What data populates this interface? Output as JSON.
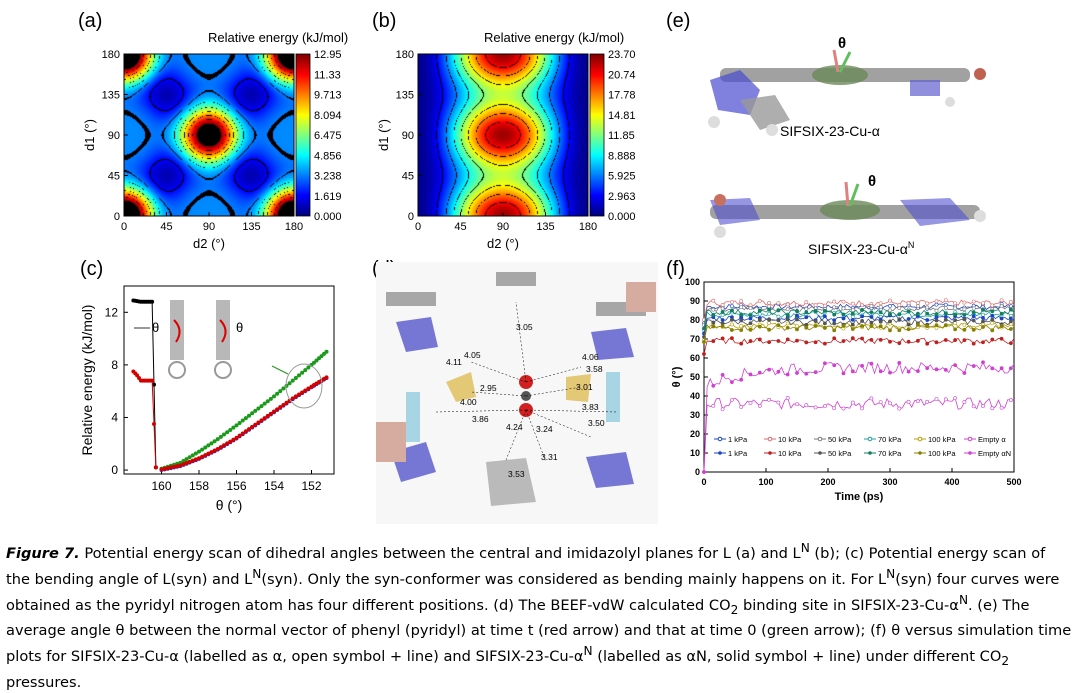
{
  "panels": {
    "a": {
      "label": "(a)",
      "title": "Relative energy (kJ/mol)",
      "xlabel": "d2 (°)",
      "ylabel": "d1 (°)",
      "ticks": [
        "0",
        "45",
        "90",
        "135",
        "180"
      ],
      "colorbar": [
        "12.95",
        "11.33",
        "9.713",
        "8.094",
        "6.475",
        "4.856",
        "3.238",
        "1.619",
        "0.000"
      ]
    },
    "b": {
      "label": "(b)",
      "title": "Relative energy (kJ/mol)",
      "xlabel": "d2 (°)",
      "ylabel": "d1 (°)",
      "ticks": [
        "0",
        "45",
        "90",
        "135",
        "180"
      ],
      "colorbar": [
        "23.70",
        "20.74",
        "17.78",
        "14.81",
        "11.85",
        "8.888",
        "5.925",
        "2.963",
        "0.000"
      ]
    },
    "c": {
      "label": "(c)",
      "xlabel": "θ (°)",
      "ylabel": "Relative energy (kJ/mol)",
      "xticks": [
        "160",
        "158",
        "156",
        "154",
        "152"
      ],
      "yticks": [
        "0",
        "4",
        "8",
        "12"
      ],
      "annot": "θ"
    },
    "d": {
      "label": "(d)",
      "distances": [
        "3.05",
        "4.05",
        "4.11",
        "4.06",
        "3.58",
        "2.95",
        "3.01",
        "4.00",
        "3.83",
        "3.86",
        "4.24",
        "3.24",
        "3.50",
        "3.31",
        "3.53"
      ]
    },
    "e": {
      "label": "(e)",
      "theta": "θ",
      "mol1": "SIFSIX-23-Cu-α",
      "mol2": "SIFSIX-23-Cu-α",
      "mol2_sup": "N"
    },
    "f": {
      "label": "(f)",
      "xlabel": "Time (ps)",
      "ylabel": "θ (°)",
      "xticks": [
        "0",
        "100",
        "200",
        "300",
        "400",
        "500"
      ],
      "yticks": [
        "0",
        "10",
        "20",
        "30",
        "40",
        "50",
        "60",
        "70",
        "80",
        "90",
        "100"
      ],
      "legend_row1": [
        "1 kPa",
        "10 kPa",
        "50 kPa",
        "70 kPa",
        "100 kPa",
        "Empty α"
      ],
      "legend_row2": [
        "1 kPa",
        "10 kPa",
        "50 kPa",
        "70 kPa",
        "100 kPa",
        "Empty αN"
      ]
    }
  },
  "caption": {
    "fig": "Figure 7.",
    "text": " Potential energy scan of dihedral angles between the central and imidazolyl planes for L (a) and L",
    "t2": " (b); (c) Potential energy scan of the bending angle of L(syn) and L",
    "t3": "(syn). Only the syn-conformer was considered as bending mainly happens on it. For L",
    "t4": "(syn) four curves were obtained as the pyridyl nitrogen atom has four different positions. (d) The BEEF-vdW calculated CO",
    "t5": " binding site in SIFSIX-23-Cu-α",
    "t6": ". (e) The average angle θ between the normal vector of phenyl (pyridyl) at time t (red arrow) and that at time 0 (green arrow); (f) θ versus simulation time plots for SIFSIX-23-Cu-α (labelled as α, open symbol + line) and SIFSIX-23-Cu-α",
    "t7": " (labelled as αN, solid symbol + line) under different CO",
    "t8": " pressures.",
    "sup": "N",
    "sub": "2"
  },
  "chart_data": [
    {
      "type": "heatmap",
      "title": "Relative energy (kJ/mol)",
      "xlabel": "d2 (°)",
      "ylabel": "d1 (°)",
      "xlim": [
        0,
        180
      ],
      "ylim": [
        0,
        180
      ],
      "zlim": [
        0,
        12.95
      ],
      "minima": [
        [
          45,
          45
        ],
        [
          45,
          135
        ],
        [
          135,
          45
        ],
        [
          135,
          135
        ]
      ],
      "maxima": [
        [
          0,
          0
        ],
        [
          0,
          180
        ],
        [
          180,
          0
        ],
        [
          180,
          180
        ],
        [
          90,
          90
        ]
      ]
    },
    {
      "type": "heatmap",
      "title": "Relative energy (kJ/mol)",
      "xlabel": "d2 (°)",
      "ylabel": "d1 (°)",
      "xlim": [
        0,
        180
      ],
      "ylim": [
        0,
        180
      ],
      "zlim": [
        0,
        23.7
      ],
      "minima": [
        [
          0,
          45
        ],
        [
          0,
          135
        ],
        [
          180,
          45
        ],
        [
          180,
          135
        ]
      ],
      "maxima": [
        [
          90,
          0
        ],
        [
          90,
          90
        ],
        [
          90,
          180
        ]
      ]
    },
    {
      "type": "scatter",
      "xlabel": "θ (°)",
      "ylabel": "Relative energy (kJ/mol)",
      "xlim": [
        162,
        150.8
      ],
      "ylim": [
        -0.3,
        14
      ],
      "series": [
        {
          "color": "#000000",
          "x": [
            161.5,
            161.3,
            161.1,
            160.9,
            160.7,
            160.5,
            160.3
          ],
          "y": [
            12.9,
            12.85,
            12.8,
            12.8,
            12.8,
            12.8,
            0.2
          ]
        },
        {
          "color": "#d40000",
          "x": [
            161.5,
            161.3,
            161.1,
            160.9,
            160.7,
            160.5,
            160.3
          ],
          "y": [
            7.5,
            7.2,
            6.8,
            6.8,
            6.8,
            6.8,
            0.2
          ]
        },
        {
          "color": "#1a9a1a",
          "x": [
            160,
            159,
            158,
            157,
            156,
            155,
            154,
            153,
            152,
            151.2
          ],
          "y": [
            0.1,
            0.55,
            1.4,
            2.35,
            3.4,
            4.5,
            5.6,
            6.8,
            8.0,
            9.0
          ]
        },
        {
          "color": "#2030c0",
          "x": [
            160,
            159,
            158,
            157,
            156,
            155,
            154,
            153,
            152,
            151.2
          ],
          "y": [
            0.0,
            0.3,
            0.85,
            1.55,
            2.4,
            3.4,
            4.4,
            5.4,
            6.3,
            7.0
          ]
        },
        {
          "color": "#d40000",
          "x": [
            160,
            159,
            158,
            157,
            156,
            155,
            154,
            153,
            152,
            151.2
          ],
          "y": [
            0.05,
            0.35,
            0.9,
            1.6,
            2.45,
            3.45,
            4.45,
            5.45,
            6.35,
            7.05
          ]
        }
      ]
    },
    {
      "type": "line",
      "xlabel": "Time (ps)",
      "ylabel": "θ (°)",
      "xlim": [
        0,
        500
      ],
      "ylim": [
        0,
        100
      ],
      "series": [
        {
          "color": "#1a44c8",
          "open": true,
          "mean": 87
        },
        {
          "color": "#e06a6a",
          "open": true,
          "mean": 89
        },
        {
          "color": "#777777",
          "open": true,
          "mean": 86
        },
        {
          "color": "#20a0a0",
          "open": true,
          "mean": 83
        },
        {
          "color": "#b8a000",
          "open": true,
          "mean": 77
        },
        {
          "color": "#d040d0",
          "open": true,
          "mean": 36
        },
        {
          "color": "#1a44c8",
          "open": false,
          "mean": 81
        },
        {
          "color": "#c02020",
          "open": false,
          "mean": 69
        },
        {
          "color": "#555555",
          "open": false,
          "mean": 79
        },
        {
          "color": "#108060",
          "open": false,
          "mean": 84
        },
        {
          "color": "#888000",
          "open": false,
          "mean": 76
        },
        {
          "color": "#d040d0",
          "open": false,
          "mean": 53
        }
      ]
    }
  ]
}
